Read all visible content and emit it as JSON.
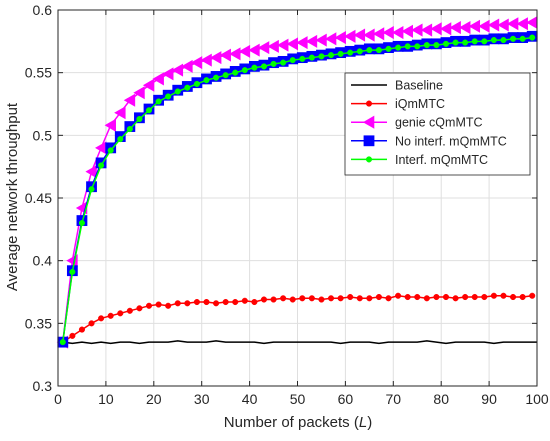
{
  "chart_data": {
    "type": "line",
    "xlabel_prefix": "Number of packets (",
    "xlabel_var": "L",
    "xlabel_suffix": ")",
    "ylabel": "Average network throughput",
    "xlim": [
      0,
      100
    ],
    "ylim": [
      0.3,
      0.6
    ],
    "xticks": [
      0,
      10,
      20,
      30,
      40,
      50,
      60,
      70,
      80,
      90,
      100
    ],
    "yticks": [
      0.3,
      0.35,
      0.4,
      0.45,
      0.5,
      0.55,
      0.6
    ],
    "xtick_labels": [
      "0",
      "10",
      "20",
      "30",
      "40",
      "50",
      "60",
      "70",
      "80",
      "90",
      "100"
    ],
    "ytick_labels": [
      "0.3",
      "0.35",
      "0.4",
      "0.45",
      "0.5",
      "0.55",
      "0.6"
    ],
    "grid": true,
    "legend_position": "top-right",
    "series": [
      {
        "name": "Baseline",
        "color": "#000000",
        "marker": "none",
        "x": [
          1,
          3,
          5,
          7,
          9,
          11,
          13,
          15,
          17,
          19,
          21,
          23,
          25,
          27,
          29,
          31,
          33,
          35,
          37,
          39,
          41,
          43,
          45,
          47,
          49,
          51,
          53,
          55,
          57,
          59,
          61,
          63,
          65,
          67,
          69,
          71,
          73,
          75,
          77,
          79,
          81,
          83,
          85,
          87,
          89,
          91,
          93,
          95,
          97,
          99,
          100
        ],
        "values": [
          0.335,
          0.334,
          0.335,
          0.334,
          0.335,
          0.334,
          0.335,
          0.335,
          0.334,
          0.335,
          0.335,
          0.335,
          0.336,
          0.335,
          0.335,
          0.335,
          0.336,
          0.335,
          0.335,
          0.335,
          0.335,
          0.334,
          0.335,
          0.335,
          0.335,
          0.335,
          0.335,
          0.335,
          0.335,
          0.334,
          0.335,
          0.335,
          0.335,
          0.334,
          0.335,
          0.335,
          0.335,
          0.335,
          0.336,
          0.335,
          0.334,
          0.335,
          0.335,
          0.335,
          0.335,
          0.334,
          0.335,
          0.335,
          0.335,
          0.335,
          0.335
        ]
      },
      {
        "name": "iQmMTC",
        "color": "#ff0000",
        "marker": "dot",
        "x": [
          1,
          3,
          5,
          7,
          9,
          11,
          13,
          15,
          17,
          19,
          21,
          23,
          25,
          27,
          29,
          31,
          33,
          35,
          37,
          39,
          41,
          43,
          45,
          47,
          49,
          51,
          53,
          55,
          57,
          59,
          61,
          63,
          65,
          67,
          69,
          71,
          73,
          75,
          77,
          79,
          81,
          83,
          85,
          87,
          89,
          91,
          93,
          95,
          97,
          99
        ],
        "values": [
          0.335,
          0.34,
          0.345,
          0.35,
          0.354,
          0.356,
          0.358,
          0.36,
          0.362,
          0.364,
          0.365,
          0.364,
          0.366,
          0.366,
          0.367,
          0.367,
          0.366,
          0.367,
          0.367,
          0.368,
          0.367,
          0.369,
          0.369,
          0.37,
          0.369,
          0.37,
          0.37,
          0.369,
          0.37,
          0.37,
          0.371,
          0.37,
          0.37,
          0.371,
          0.37,
          0.372,
          0.371,
          0.371,
          0.37,
          0.371,
          0.371,
          0.37,
          0.371,
          0.371,
          0.371,
          0.372,
          0.372,
          0.371,
          0.371,
          0.372
        ]
      },
      {
        "name": "genie cQmMTC",
        "color": "#ff00ff",
        "marker": "triangle-left",
        "x": [
          1,
          3,
          5,
          7,
          9,
          11,
          13,
          15,
          17,
          19,
          21,
          23,
          25,
          27,
          29,
          31,
          33,
          35,
          37,
          39,
          41,
          43,
          45,
          47,
          49,
          51,
          53,
          55,
          57,
          59,
          61,
          63,
          65,
          67,
          69,
          71,
          73,
          75,
          77,
          79,
          81,
          83,
          85,
          87,
          89,
          91,
          93,
          95,
          97,
          99
        ],
        "values": [
          0.335,
          0.4,
          0.442,
          0.471,
          0.49,
          0.508,
          0.518,
          0.528,
          0.534,
          0.54,
          0.545,
          0.549,
          0.552,
          0.555,
          0.558,
          0.56,
          0.562,
          0.564,
          0.565,
          0.567,
          0.568,
          0.57,
          0.571,
          0.572,
          0.573,
          0.574,
          0.575,
          0.576,
          0.577,
          0.578,
          0.579,
          0.58,
          0.58,
          0.581,
          0.582,
          0.582,
          0.583,
          0.584,
          0.584,
          0.585,
          0.585,
          0.586,
          0.586,
          0.587,
          0.587,
          0.588,
          0.588,
          0.589,
          0.589,
          0.59
        ]
      },
      {
        "name": "No interf. mQmMTC",
        "color": "#0000ff",
        "marker": "square",
        "x": [
          1,
          3,
          5,
          7,
          9,
          11,
          13,
          15,
          17,
          19,
          21,
          23,
          25,
          27,
          29,
          31,
          33,
          35,
          37,
          39,
          41,
          43,
          45,
          47,
          49,
          51,
          53,
          55,
          57,
          59,
          61,
          63,
          65,
          67,
          69,
          71,
          73,
          75,
          77,
          79,
          81,
          83,
          85,
          87,
          89,
          91,
          93,
          95,
          97,
          99
        ],
        "values": [
          0.335,
          0.392,
          0.432,
          0.459,
          0.478,
          0.49,
          0.499,
          0.507,
          0.514,
          0.521,
          0.528,
          0.532,
          0.536,
          0.539,
          0.542,
          0.545,
          0.547,
          0.549,
          0.551,
          0.553,
          0.555,
          0.556,
          0.558,
          0.559,
          0.561,
          0.562,
          0.563,
          0.564,
          0.565,
          0.566,
          0.567,
          0.568,
          0.569,
          0.569,
          0.57,
          0.571,
          0.571,
          0.572,
          0.573,
          0.573,
          0.574,
          0.575,
          0.575,
          0.576,
          0.576,
          0.577,
          0.577,
          0.578,
          0.578,
          0.579
        ]
      },
      {
        "name": "Interf. mQmMTC",
        "color": "#00ff00",
        "marker": "dot",
        "x": [
          1,
          3,
          5,
          7,
          9,
          11,
          13,
          15,
          17,
          19,
          21,
          23,
          25,
          27,
          29,
          31,
          33,
          35,
          37,
          39,
          41,
          43,
          45,
          47,
          49,
          51,
          53,
          55,
          57,
          59,
          61,
          63,
          65,
          67,
          69,
          71,
          73,
          75,
          77,
          79,
          81,
          83,
          85,
          87,
          89,
          91,
          93,
          95,
          97,
          99
        ],
        "values": [
          0.335,
          0.391,
          0.43,
          0.457,
          0.476,
          0.488,
          0.497,
          0.505,
          0.513,
          0.52,
          0.527,
          0.531,
          0.535,
          0.538,
          0.541,
          0.544,
          0.546,
          0.548,
          0.55,
          0.552,
          0.554,
          0.555,
          0.557,
          0.558,
          0.56,
          0.561,
          0.562,
          0.563,
          0.564,
          0.565,
          0.566,
          0.567,
          0.568,
          0.568,
          0.569,
          0.57,
          0.571,
          0.571,
          0.572,
          0.572,
          0.573,
          0.574,
          0.574,
          0.575,
          0.575,
          0.576,
          0.576,
          0.577,
          0.577,
          0.578
        ]
      }
    ]
  }
}
